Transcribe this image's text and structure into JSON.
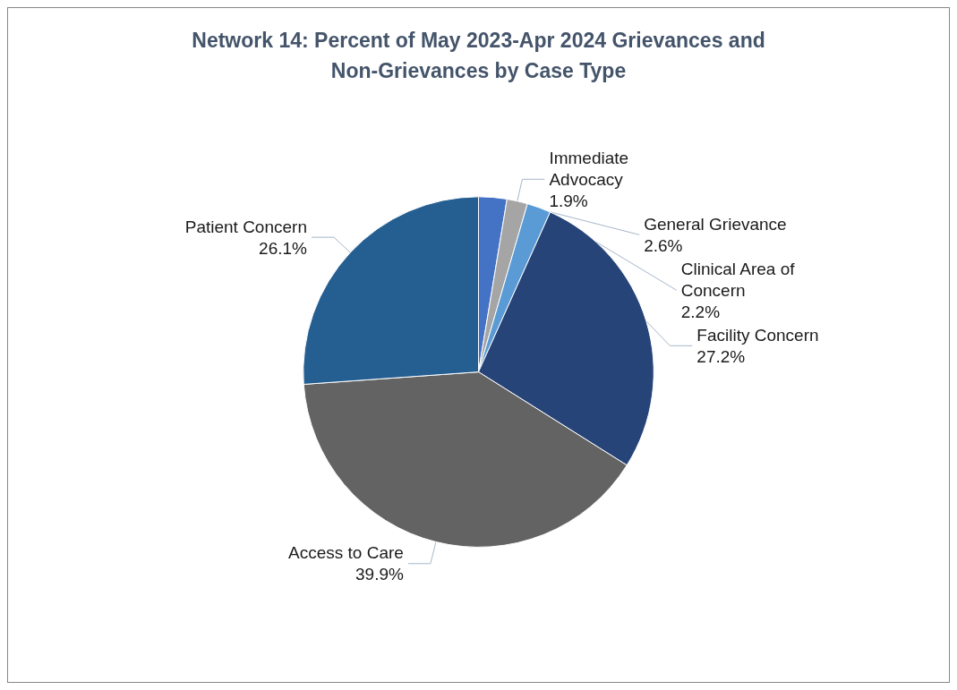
{
  "chart_data": {
    "type": "pie",
    "title": "Network 14: Percent of May 2023-Apr 2024 Grievances and\nNon-Grievances by Case Type",
    "categories": [
      "General Grievance",
      "Immediate Advocacy",
      "Clinical Area of Concern",
      "Facility Concern",
      "Access to Care",
      "Patient Concern"
    ],
    "values": [
      2.6,
      1.9,
      2.2,
      27.2,
      39.9,
      26.1
    ],
    "colors": [
      "#4472c4",
      "#a5a5a5",
      "#5b9bd5",
      "#264478",
      "#636363",
      "#255e91"
    ],
    "value_labels": [
      "2.6%",
      "1.9%",
      "2.2%",
      "27.2%",
      "39.9%",
      "26.1%"
    ],
    "legend": false
  }
}
